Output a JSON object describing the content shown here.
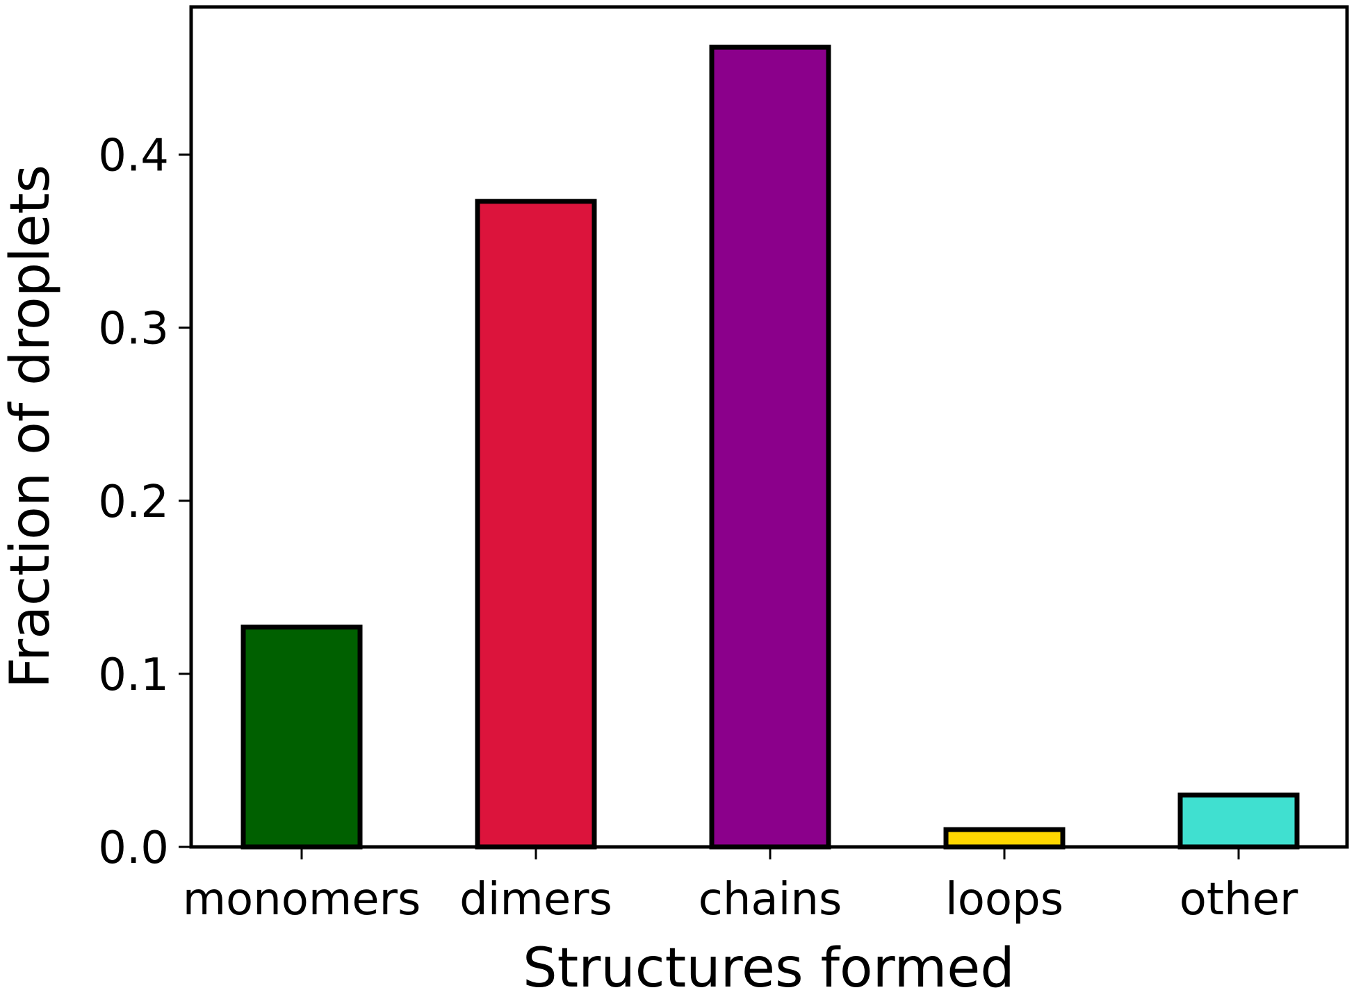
{
  "chart_data": {
    "type": "bar",
    "title": "",
    "xlabel": "Structures formed",
    "ylabel": "Fraction of droplets",
    "categories": [
      "monomers",
      "dimers",
      "chains",
      "loops",
      "other"
    ],
    "values": [
      0.127,
      0.373,
      0.462,
      0.01,
      0.03
    ],
    "colors": [
      "#006000",
      "#dc143c",
      "#8b008b",
      "#ffd700",
      "#40e0d0"
    ],
    "edge_color": "#000000",
    "ylim": [
      0,
      0.4853
    ],
    "yticks": [
      0.0,
      0.1,
      0.2,
      0.3,
      0.4
    ],
    "ytick_labels": [
      "0.0",
      "0.1",
      "0.2",
      "0.3",
      "0.4"
    ],
    "grid": false,
    "legend": "none"
  }
}
